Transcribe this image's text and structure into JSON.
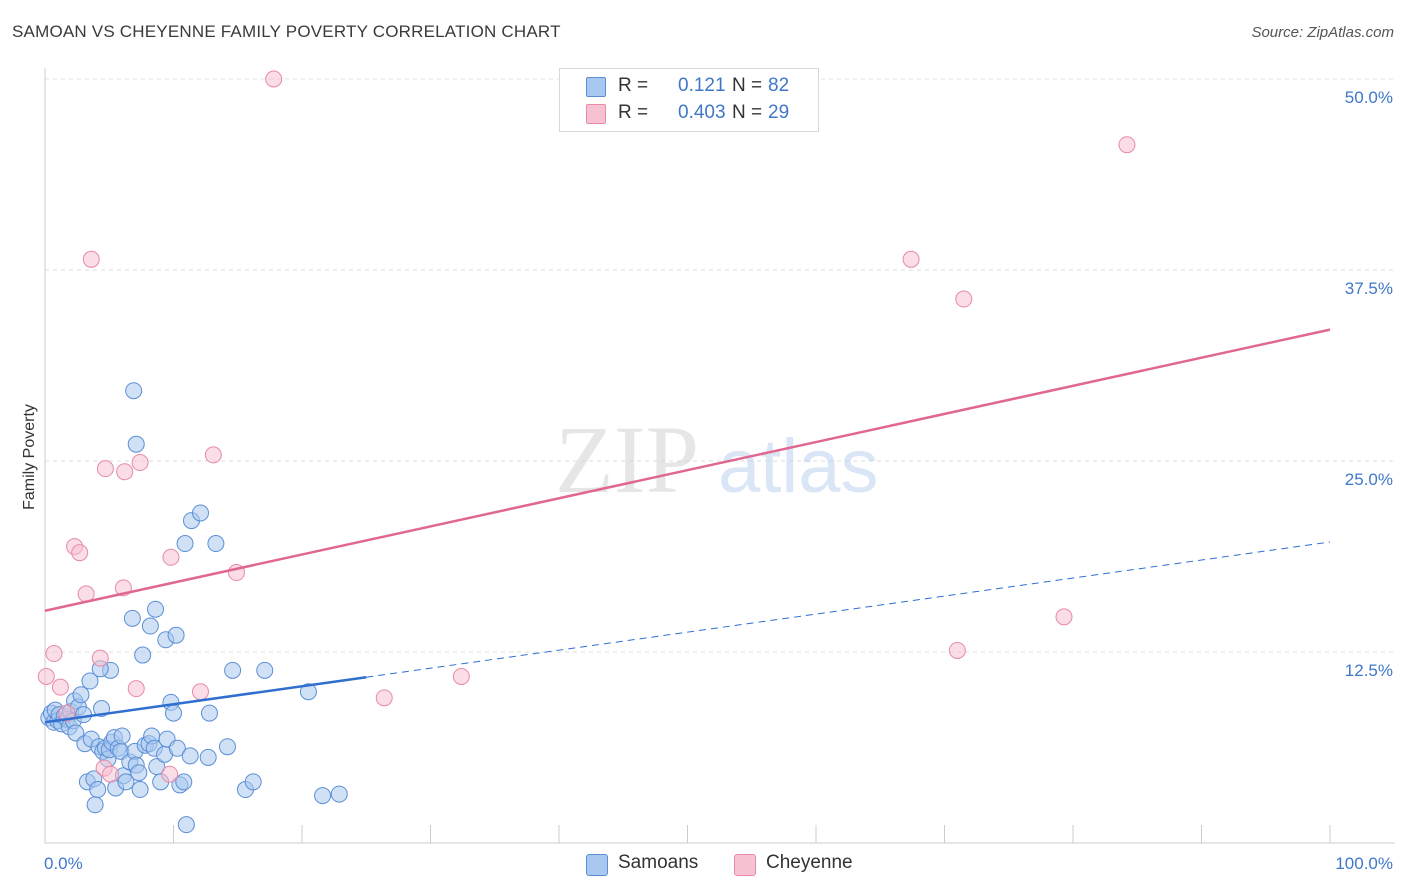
{
  "header": {
    "title": "SAMOAN VS CHEYENNE FAMILY POVERTY CORRELATION CHART",
    "source": "Source: ZipAtlas.com"
  },
  "legend": {
    "r_label": "R =",
    "n_label": "N =",
    "samoans": {
      "r": "0.121",
      "n": "82"
    },
    "cheyenne": {
      "r": "0.403",
      "n": "29"
    }
  },
  "watermark": {
    "zip": "ZIP",
    "atlas": "atlas"
  },
  "colors": {
    "samoans_fill": "#a9c8ef",
    "samoans_stroke": "#5b8fd6",
    "samoans_line": "#2f6fd0",
    "cheyenne_fill": "#f6c1d1",
    "cheyenne_stroke": "#e88aa7",
    "cheyenne_line": "#e06890",
    "tick_text": "#3f78c8"
  },
  "chart_data": {
    "type": "scatter",
    "title": "SAMOAN VS CHEYENNE FAMILY POVERTY CORRELATION CHART",
    "xlabel": "",
    "ylabel": "Family Poverty",
    "xlim": [
      0,
      100
    ],
    "ylim": [
      0,
      50
    ],
    "x_tick_labels": [
      "0.0%",
      "100.0%"
    ],
    "y_ticks": [
      12.5,
      25.0,
      37.5,
      50.0
    ],
    "y_tick_labels": [
      "12.5%",
      "25.0%",
      "37.5%",
      "50.0%"
    ],
    "grid": true,
    "series": [
      {
        "name": "Samoans",
        "r": 0.121,
        "n": 82,
        "trend": {
          "x0": 0,
          "y0": 7.9,
          "x_solid_end": 25,
          "x1": 100,
          "y1": 19.7
        },
        "points": [
          [
            0.3,
            8.2
          ],
          [
            0.5,
            8.5
          ],
          [
            0.7,
            7.9
          ],
          [
            0.8,
            8.7
          ],
          [
            1.0,
            8.0
          ],
          [
            1.1,
            8.4
          ],
          [
            1.3,
            7.8
          ],
          [
            1.5,
            8.3
          ],
          [
            1.7,
            8.1
          ],
          [
            1.9,
            7.6
          ],
          [
            2.0,
            8.6
          ],
          [
            2.2,
            8.0
          ],
          [
            2.3,
            9.3
          ],
          [
            2.4,
            7.2
          ],
          [
            2.6,
            8.9
          ],
          [
            2.8,
            9.7
          ],
          [
            3.0,
            8.4
          ],
          [
            3.1,
            6.5
          ],
          [
            3.3,
            4.0
          ],
          [
            3.5,
            10.6
          ],
          [
            3.6,
            6.8
          ],
          [
            3.8,
            4.2
          ],
          [
            3.9,
            2.5
          ],
          [
            4.1,
            3.5
          ],
          [
            4.2,
            6.3
          ],
          [
            4.4,
            8.8
          ],
          [
            4.5,
            6.0
          ],
          [
            4.7,
            6.2
          ],
          [
            4.9,
            5.5
          ],
          [
            5.0,
            6.1
          ],
          [
            5.1,
            11.3
          ],
          [
            5.2,
            6.6
          ],
          [
            5.4,
            6.9
          ],
          [
            5.5,
            3.6
          ],
          [
            5.7,
            6.2
          ],
          [
            5.9,
            6.0
          ],
          [
            6.0,
            7.0
          ],
          [
            6.1,
            4.4
          ],
          [
            6.3,
            4.0
          ],
          [
            6.6,
            5.3
          ],
          [
            6.8,
            14.7
          ],
          [
            7.0,
            6.0
          ],
          [
            7.1,
            5.1
          ],
          [
            7.4,
            3.5
          ],
          [
            7.6,
            12.3
          ],
          [
            7.8,
            6.4
          ],
          [
            8.1,
            6.5
          ],
          [
            8.3,
            7.0
          ],
          [
            8.5,
            6.2
          ],
          [
            8.7,
            5.0
          ],
          [
            9.0,
            4.0
          ],
          [
            9.3,
            5.8
          ],
          [
            9.5,
            6.8
          ],
          [
            9.8,
            9.2
          ],
          [
            10.0,
            8.5
          ],
          [
            10.3,
            6.2
          ],
          [
            10.5,
            3.8
          ],
          [
            10.8,
            4.0
          ],
          [
            11.0,
            1.2
          ],
          [
            11.3,
            5.7
          ],
          [
            7.3,
            4.6
          ],
          [
            4.3,
            11.4
          ],
          [
            7.1,
            26.1
          ],
          [
            6.9,
            29.6
          ],
          [
            8.2,
            14.2
          ],
          [
            8.6,
            15.3
          ],
          [
            9.4,
            13.3
          ],
          [
            10.2,
            13.6
          ],
          [
            10.9,
            19.6
          ],
          [
            11.4,
            21.1
          ],
          [
            12.1,
            21.6
          ],
          [
            13.3,
            19.6
          ],
          [
            12.8,
            8.5
          ],
          [
            14.2,
            6.3
          ],
          [
            14.6,
            11.3
          ],
          [
            15.6,
            3.5
          ],
          [
            16.2,
            4.0
          ],
          [
            17.1,
            11.3
          ],
          [
            12.7,
            5.6
          ],
          [
            21.6,
            3.1
          ],
          [
            22.9,
            3.2
          ],
          [
            20.5,
            9.9
          ]
        ]
      },
      {
        "name": "Cheyenne",
        "r": 0.403,
        "n": 29,
        "trend": {
          "x0": 0,
          "y0": 15.2,
          "x1": 100,
          "y1": 33.6
        },
        "points": [
          [
            0.1,
            10.9
          ],
          [
            0.7,
            12.4
          ],
          [
            1.2,
            10.2
          ],
          [
            1.7,
            8.5
          ],
          [
            2.3,
            19.4
          ],
          [
            2.7,
            19.0
          ],
          [
            3.2,
            16.3
          ],
          [
            3.6,
            38.2
          ],
          [
            4.3,
            12.1
          ],
          [
            4.6,
            4.9
          ],
          [
            4.7,
            24.5
          ],
          [
            5.1,
            4.5
          ],
          [
            6.1,
            16.7
          ],
          [
            6.2,
            24.3
          ],
          [
            7.1,
            10.1
          ],
          [
            7.4,
            24.9
          ],
          [
            9.7,
            4.5
          ],
          [
            9.8,
            18.7
          ],
          [
            12.1,
            9.9
          ],
          [
            13.1,
            25.4
          ],
          [
            14.9,
            17.7
          ],
          [
            17.8,
            50.0
          ],
          [
            26.4,
            9.5
          ],
          [
            32.4,
            10.9
          ],
          [
            67.4,
            38.2
          ],
          [
            71.5,
            35.6
          ],
          [
            71.0,
            12.6
          ],
          [
            79.3,
            14.8
          ],
          [
            84.2,
            45.7
          ]
        ]
      }
    ]
  },
  "bottom_legend": {
    "samoans": "Samoans",
    "cheyenne": "Cheyenne"
  }
}
